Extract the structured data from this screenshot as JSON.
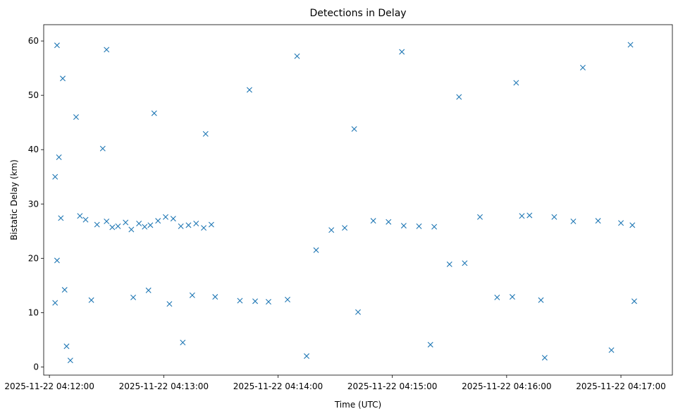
{
  "chart_data": {
    "type": "scatter",
    "title": "Detections in Delay",
    "xlabel": "Time (UTC)",
    "ylabel": "Bistatic Delay (km)",
    "x_axis_type": "time",
    "xlim": [
      "2025-11-22T04:11:57",
      "2025-11-22T04:17:27"
    ],
    "ylim": [
      -1.5,
      63
    ],
    "x_ticks": [
      {
        "time": "2025-11-22T04:12:00",
        "label": "2025-11-22 04:12:00"
      },
      {
        "time": "2025-11-22T04:13:00",
        "label": "2025-11-22 04:13:00"
      },
      {
        "time": "2025-11-22T04:14:00",
        "label": "2025-11-22 04:14:00"
      },
      {
        "time": "2025-11-22T04:15:00",
        "label": "2025-11-22 04:15:00"
      },
      {
        "time": "2025-11-22T04:16:00",
        "label": "2025-11-22 04:16:00"
      },
      {
        "time": "2025-11-22T04:17:00",
        "label": "2025-11-22 04:17:00"
      }
    ],
    "y_ticks": [
      0,
      10,
      20,
      30,
      40,
      50,
      60
    ],
    "marker": "x",
    "color": "#1f77b4",
    "grid": false,
    "legend": "none",
    "series": [
      {
        "points": [
          [
            "2025-11-22T04:12:04",
            59.2
          ],
          [
            "2025-11-22T04:12:07",
            53.1
          ],
          [
            "2025-11-22T04:12:05",
            38.6
          ],
          [
            "2025-11-22T04:12:03",
            35.0
          ],
          [
            "2025-11-22T04:12:06",
            27.4
          ],
          [
            "2025-11-22T04:12:04",
            19.6
          ],
          [
            "2025-11-22T04:12:08",
            14.2
          ],
          [
            "2025-11-22T04:12:03",
            11.8
          ],
          [
            "2025-11-22T04:12:09",
            3.8
          ],
          [
            "2025-11-22T04:12:11",
            1.2
          ],
          [
            "2025-11-22T04:12:14",
            46.0
          ],
          [
            "2025-11-22T04:12:16",
            27.8
          ],
          [
            "2025-11-22T04:12:19",
            27.1
          ],
          [
            "2025-11-22T04:12:22",
            12.3
          ],
          [
            "2025-11-22T04:12:25",
            26.2
          ],
          [
            "2025-11-22T04:12:28",
            40.2
          ],
          [
            "2025-11-22T04:12:30",
            26.8
          ],
          [
            "2025-11-22T04:12:33",
            25.7
          ],
          [
            "2025-11-22T04:12:36",
            25.9
          ],
          [
            "2025-11-22T04:12:40",
            26.6
          ],
          [
            "2025-11-22T04:12:43",
            25.3
          ],
          [
            "2025-11-22T04:12:47",
            26.4
          ],
          [
            "2025-11-22T04:12:50",
            25.8
          ],
          [
            "2025-11-22T04:12:53",
            26.1
          ],
          [
            "2025-11-22T04:12:57",
            26.9
          ],
          [
            "2025-11-22T04:13:01",
            27.6
          ],
          [
            "2025-11-22T04:13:05",
            27.3
          ],
          [
            "2025-11-22T04:13:09",
            25.9
          ],
          [
            "2025-11-22T04:13:13",
            26.1
          ],
          [
            "2025-11-22T04:13:17",
            26.4
          ],
          [
            "2025-11-22T04:13:21",
            25.6
          ],
          [
            "2025-11-22T04:13:25",
            26.2
          ],
          [
            "2025-11-22T04:12:44",
            12.8
          ],
          [
            "2025-11-22T04:12:52",
            14.1
          ],
          [
            "2025-11-22T04:13:03",
            11.6
          ],
          [
            "2025-11-22T04:13:15",
            13.2
          ],
          [
            "2025-11-22T04:13:27",
            12.9
          ],
          [
            "2025-11-22T04:13:40",
            12.2
          ],
          [
            "2025-11-22T04:13:48",
            12.1
          ],
          [
            "2025-11-22T04:13:55",
            12.0
          ],
          [
            "2025-11-22T04:14:05",
            12.4
          ],
          [
            "2025-11-22T04:14:20",
            21.5
          ],
          [
            "2025-11-22T04:14:28",
            25.2
          ],
          [
            "2025-11-22T04:14:35",
            25.6
          ],
          [
            "2025-11-22T04:14:42",
            10.1
          ],
          [
            "2025-11-22T04:14:50",
            26.9
          ],
          [
            "2025-11-22T04:14:58",
            26.7
          ],
          [
            "2025-11-22T04:15:06",
            26.0
          ],
          [
            "2025-11-22T04:15:14",
            25.9
          ],
          [
            "2025-11-22T04:15:22",
            25.8
          ],
          [
            "2025-11-22T04:15:30",
            18.9
          ],
          [
            "2025-11-22T04:15:38",
            19.1
          ],
          [
            "2025-11-22T04:15:46",
            27.6
          ],
          [
            "2025-11-22T04:15:55",
            12.8
          ],
          [
            "2025-11-22T04:16:03",
            12.9
          ],
          [
            "2025-11-22T04:16:08",
            27.8
          ],
          [
            "2025-11-22T04:16:12",
            27.9
          ],
          [
            "2025-11-22T04:16:18",
            12.3
          ],
          [
            "2025-11-22T04:16:25",
            27.6
          ],
          [
            "2025-11-22T04:16:35",
            26.8
          ],
          [
            "2025-11-22T04:16:48",
            26.9
          ],
          [
            "2025-11-22T04:17:00",
            26.5
          ],
          [
            "2025-11-22T04:17:06",
            26.1
          ],
          [
            "2025-11-22T04:17:07",
            12.1
          ],
          [
            "2025-11-22T04:12:30",
            58.4
          ],
          [
            "2025-11-22T04:12:55",
            46.7
          ],
          [
            "2025-11-22T04:13:22",
            42.9
          ],
          [
            "2025-11-22T04:13:45",
            51.0
          ],
          [
            "2025-11-22T04:14:10",
            57.2
          ],
          [
            "2025-11-22T04:14:40",
            43.8
          ],
          [
            "2025-11-22T04:15:05",
            58.0
          ],
          [
            "2025-11-22T04:15:35",
            49.7
          ],
          [
            "2025-11-22T04:16:05",
            52.3
          ],
          [
            "2025-11-22T04:16:40",
            55.1
          ],
          [
            "2025-11-22T04:17:05",
            59.3
          ],
          [
            "2025-11-22T04:13:10",
            4.5
          ],
          [
            "2025-11-22T04:14:15",
            2.0
          ],
          [
            "2025-11-22T04:15:20",
            4.1
          ],
          [
            "2025-11-22T04:16:20",
            1.7
          ],
          [
            "2025-11-22T04:16:55",
            3.1
          ]
        ]
      }
    ]
  }
}
